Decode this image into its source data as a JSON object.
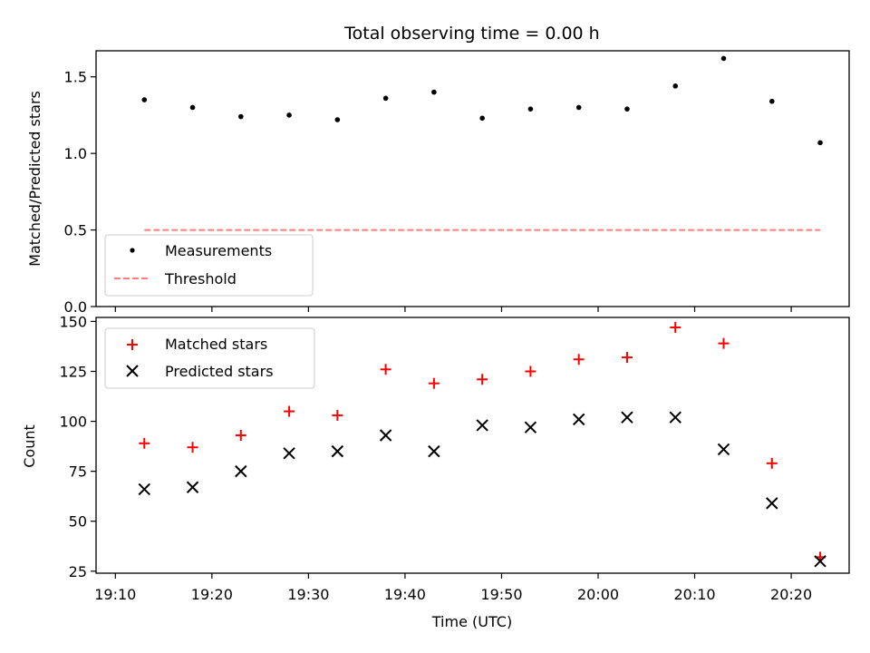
{
  "chart_data": [
    {
      "type": "scatter",
      "title": "Total observing time = 0.00 h",
      "xlabel": "",
      "ylabel": "Matched/Predicted stars",
      "xlim": [
        "19:08",
        "20:26"
      ],
      "ylim": [
        0,
        1.67
      ],
      "yticks": [
        0.0,
        0.5,
        1.0,
        1.5
      ],
      "ytick_labels": [
        "0.0",
        "0.5",
        "1.0",
        "1.5"
      ],
      "x": [
        "19:13",
        "19:18",
        "19:23",
        "19:28",
        "19:33",
        "19:38",
        "19:43",
        "19:48",
        "19:53",
        "19:58",
        "20:03",
        "20:08",
        "20:13",
        "20:18",
        "20:23"
      ],
      "series": [
        {
          "name": "Measurements",
          "marker": "dot",
          "color": "#000000",
          "values": [
            1.35,
            1.3,
            1.24,
            1.25,
            1.22,
            1.36,
            1.4,
            1.23,
            1.29,
            1.3,
            1.29,
            1.44,
            1.62,
            1.34,
            1.07
          ]
        },
        {
          "name": "Threshold",
          "marker": "dashed-line",
          "color": "#ff7f7f",
          "x_range": [
            "19:13",
            "20:23"
          ],
          "value": 0.5
        }
      ],
      "legend": "lower-left"
    },
    {
      "type": "scatter",
      "title": "",
      "xlabel": "Time (UTC)",
      "ylabel": "Count",
      "xlim": [
        "19:08",
        "20:26"
      ],
      "xticks": [
        "19:10",
        "19:20",
        "19:30",
        "19:40",
        "19:50",
        "20:00",
        "20:10",
        "20:20"
      ],
      "ylim": [
        24,
        152
      ],
      "yticks": [
        25,
        50,
        75,
        100,
        125,
        150
      ],
      "ytick_labels": [
        "25",
        "50",
        "75",
        "100",
        "125",
        "150"
      ],
      "x": [
        "19:13",
        "19:18",
        "19:23",
        "19:28",
        "19:33",
        "19:38",
        "19:43",
        "19:48",
        "19:53",
        "19:58",
        "20:03",
        "20:08",
        "20:13",
        "20:18",
        "20:23"
      ],
      "series": [
        {
          "name": "Matched stars",
          "marker": "plus",
          "color": "#ff0000",
          "values": [
            89,
            87,
            93,
            105,
            103,
            126,
            119,
            121,
            125,
            131,
            132,
            147,
            139,
            79,
            32
          ]
        },
        {
          "name": "Predicted stars",
          "marker": "x",
          "color": "#000000",
          "values": [
            66,
            67,
            75,
            84,
            85,
            93,
            85,
            98,
            97,
            101,
            102,
            102,
            86,
            59,
            30
          ]
        }
      ],
      "legend": "upper-left"
    }
  ]
}
